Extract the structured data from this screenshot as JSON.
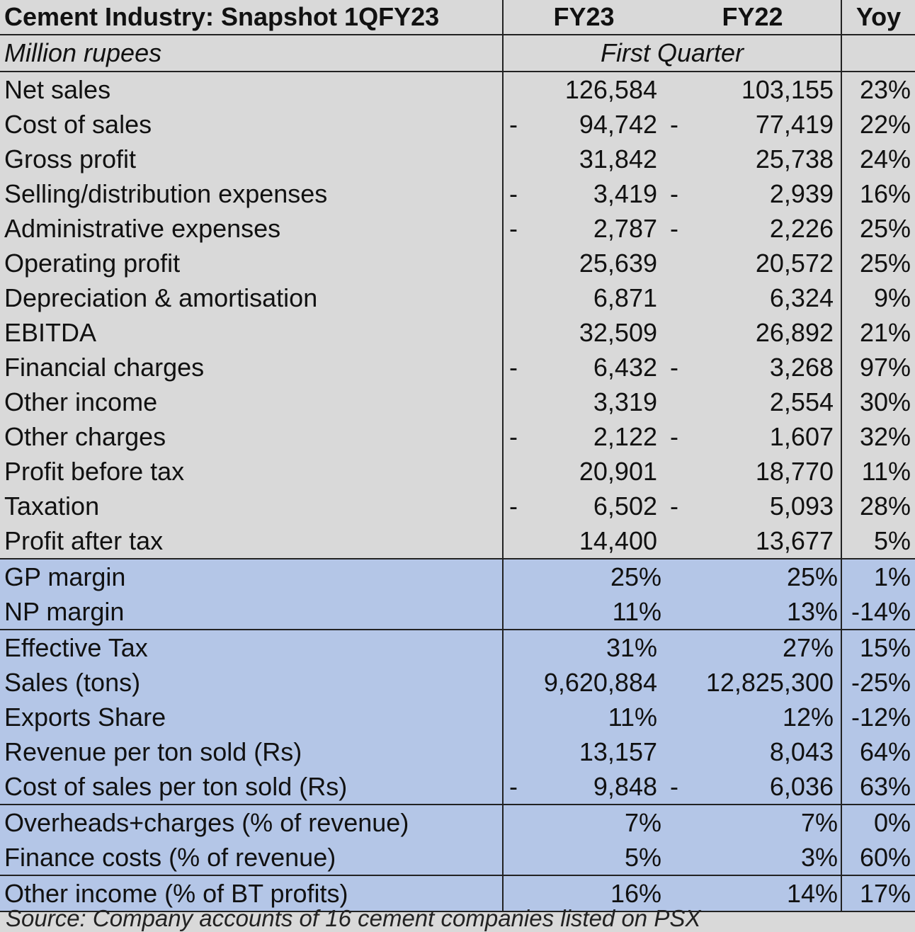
{
  "header": {
    "title": "Cement Industry: Snapshot 1QFY23",
    "col_fy23": "FY23",
    "col_fy22": "FY22",
    "col_yoy": "Yoy"
  },
  "subheader": {
    "unit": "Million rupees",
    "period": "First Quarter"
  },
  "rows": [
    {
      "label": "Net sales",
      "fy23": "126,584",
      "fy22": "103,155",
      "yoy": "23%",
      "neg": false
    },
    {
      "label": "Cost of sales",
      "fy23": "94,742",
      "fy22": "77,419",
      "yoy": "22%",
      "neg": true
    },
    {
      "label": "Gross profit",
      "fy23": "31,842",
      "fy22": "25,738",
      "yoy": "24%",
      "neg": false
    },
    {
      "label": "Selling/distribution expenses",
      "fy23": "3,419",
      "fy22": "2,939",
      "yoy": "16%",
      "neg": true
    },
    {
      "label": "Administrative expenses",
      "fy23": "2,787",
      "fy22": "2,226",
      "yoy": "25%",
      "neg": true
    },
    {
      "label": "Operating profit",
      "fy23": "25,639",
      "fy22": "20,572",
      "yoy": "25%",
      "neg": false
    },
    {
      "label": "Depreciation & amortisation",
      "fy23": "6,871",
      "fy22": "6,324",
      "yoy": "9%",
      "neg": false
    },
    {
      "label": "EBITDA",
      "fy23": "32,509",
      "fy22": "26,892",
      "yoy": "21%",
      "neg": false
    },
    {
      "label": "Financial charges",
      "fy23": "6,432",
      "fy22": "3,268",
      "yoy": "97%",
      "neg": true
    },
    {
      "label": "Other income",
      "fy23": "3,319",
      "fy22": "2,554",
      "yoy": "30%",
      "neg": false
    },
    {
      "label": "Other charges",
      "fy23": "2,122",
      "fy22": "1,607",
      "yoy": "32%",
      "neg": true
    },
    {
      "label": "Profit before tax",
      "fy23": "20,901",
      "fy22": "18,770",
      "yoy": "11%",
      "neg": false
    },
    {
      "label": "Taxation",
      "fy23": "6,502",
      "fy22": "5,093",
      "yoy": "28%",
      "neg": true
    },
    {
      "label": "Profit after tax",
      "fy23": "14,400",
      "fy22": "13,677",
      "yoy": "5%",
      "neg": false
    }
  ],
  "margins": [
    {
      "label": "GP margin",
      "fy23": "25%",
      "fy22": "25%",
      "yoy": "1%",
      "neg": false
    },
    {
      "label": "NP margin",
      "fy23": "11%",
      "fy22": "13%",
      "yoy": "-14%",
      "neg": false
    }
  ],
  "ops": [
    {
      "label": "Effective Tax",
      "fy23": "31%",
      "fy22": "27%",
      "yoy": "15%",
      "neg": false
    },
    {
      "label": "Sales (tons)",
      "fy23": "9,620,884",
      "fy22": "12,825,300",
      "yoy": "-25%",
      "neg": false
    },
    {
      "label": "Exports Share",
      "fy23": "11%",
      "fy22": "12%",
      "yoy": "-12%",
      "neg": false
    },
    {
      "label": "Revenue per ton sold (Rs)",
      "fy23": "13,157",
      "fy22": "8,043",
      "yoy": "64%",
      "neg": false
    },
    {
      "label": "Cost of sales per ton sold (Rs)",
      "fy23": "9,848",
      "fy22": "6,036",
      "yoy": "63%",
      "neg": true
    }
  ],
  "ratios": [
    {
      "label": "Overheads+charges (% of revenue)",
      "fy23": "7%",
      "fy22": "7%",
      "yoy": "0%",
      "neg": false
    },
    {
      "label": "Finance costs (% of revenue)",
      "fy23": "5%",
      "fy22": "3%",
      "yoy": "60%",
      "neg": false
    }
  ],
  "last": [
    {
      "label": "Other income (% of BT profits)",
      "fy23": "16%",
      "fy22": "14%",
      "yoy": "17%",
      "neg": false
    }
  ],
  "dash_glyph": "-",
  "source": "Source: Company accounts of 16 cement companies listed on PSX"
}
